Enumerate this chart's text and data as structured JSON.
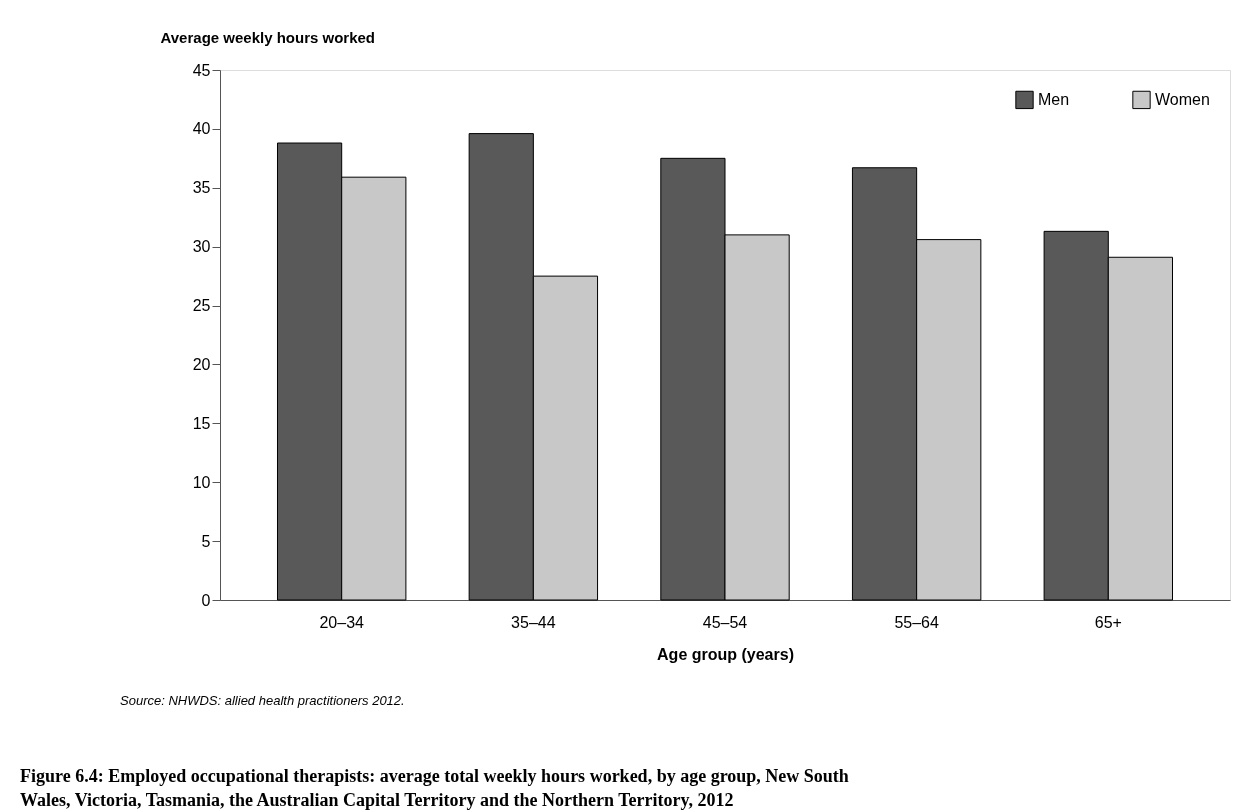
{
  "chart_data": {
    "type": "bar",
    "title": "Figure 6.4: Employed occupational therapists: average total weekly hours worked, by age group, New South Wales, Victoria, Tasmania, the Australian Capital Territory and the Northern Territory, 2012",
    "ylabel": "Average weekly hours worked",
    "xlabel": "Age group (years)",
    "annotations": [
      "Source: NHWDS: allied health practitioners 2012."
    ],
    "categories": [
      "20–34",
      "35–44",
      "45–54",
      "55–64",
      "65+"
    ],
    "series": [
      {
        "name": "Men",
        "color": "#595959",
        "values": [
          38.8,
          39.6,
          37.5,
          36.7,
          31.3
        ]
      },
      {
        "name": "Women",
        "color": "#c8c8c8",
        "values": [
          35.9,
          27.5,
          31.0,
          30.6,
          29.1
        ]
      }
    ],
    "ylim": [
      0,
      45
    ],
    "yticks": [
      0,
      5,
      10,
      15,
      20,
      25,
      30,
      35,
      40,
      45
    ],
    "grid": false,
    "legend": "top right"
  }
}
